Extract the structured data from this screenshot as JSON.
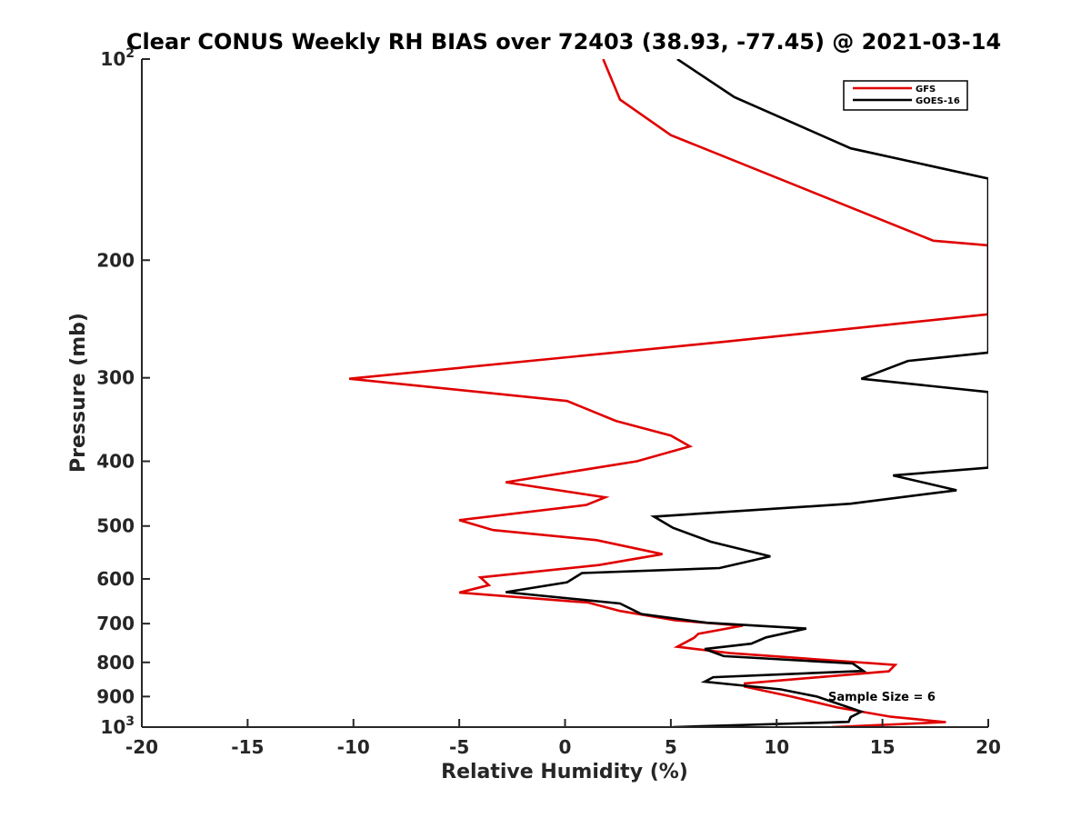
{
  "chart_data": {
    "type": "line",
    "title": "Clear CONUS Weekly RH BIAS over 72403 (38.93, -77.45) @ 2021-03-14",
    "xlabel": "Relative Humidity (%)",
    "ylabel": "Pressure (mb)",
    "xlim": [
      -20,
      20
    ],
    "ylim": [
      100,
      1000
    ],
    "y_scale": "log",
    "y_reversed": true,
    "grid": false,
    "legend_position": "top-right",
    "x_ticks": [
      -20,
      -15,
      -10,
      -5,
      0,
      5,
      10,
      15,
      20
    ],
    "x_tick_labels": [
      "-20",
      "-15",
      "-10",
      "-5",
      "0",
      "5",
      "10",
      "15",
      "20"
    ],
    "y_ticks": [
      100,
      200,
      300,
      400,
      500,
      600,
      700,
      800,
      900,
      1000
    ],
    "y_tick_labels": [
      {
        "base": "10",
        "exp": "2"
      },
      {
        "base": "200",
        "exp": ""
      },
      {
        "base": "300",
        "exp": ""
      },
      {
        "base": "400",
        "exp": ""
      },
      {
        "base": "500",
        "exp": ""
      },
      {
        "base": "600",
        "exp": ""
      },
      {
        "base": "700",
        "exp": ""
      },
      {
        "base": "800",
        "exp": ""
      },
      {
        "base": "900",
        "exp": ""
      },
      {
        "base": "10",
        "exp": "3"
      }
    ],
    "annotation": "Sample Size = 6",
    "series": [
      {
        "name": "GFS",
        "color": "#e00000",
        "points": [
          [
            1.8,
            100
          ],
          [
            2.6,
            115
          ],
          [
            5.0,
            130
          ],
          [
            17.4,
            187
          ],
          [
            20.0,
            190
          ],
          [
            20.0,
            241
          ],
          [
            7.5,
            265
          ],
          [
            -10.2,
            301
          ],
          [
            0.1,
            325
          ],
          [
            2.4,
            348
          ],
          [
            5.0,
            366
          ],
          [
            5.9,
            380
          ],
          [
            3.4,
            400
          ],
          [
            -2.8,
            430
          ],
          [
            1.9,
            453
          ],
          [
            1.0,
            465
          ],
          [
            -5.0,
            490
          ],
          [
            -3.4,
            507
          ],
          [
            1.5,
            525
          ],
          [
            4.6,
            551
          ],
          [
            1.6,
            572
          ],
          [
            -4.0,
            597
          ],
          [
            -3.6,
            613
          ],
          [
            -5.0,
            629
          ],
          [
            1.1,
            651
          ],
          [
            2.6,
            670
          ],
          [
            5.2,
            692
          ],
          [
            8.4,
            705
          ],
          [
            6.3,
            725
          ],
          [
            6.1,
            735
          ],
          [
            5.3,
            758
          ],
          [
            7.8,
            775
          ],
          [
            15.6,
            807
          ],
          [
            15.3,
            825
          ],
          [
            8.5,
            860
          ],
          [
            8.5,
            870
          ],
          [
            10.7,
            900
          ],
          [
            12.9,
            935
          ],
          [
            15.4,
            965
          ],
          [
            18.0,
            983
          ],
          [
            12.6,
            1000
          ]
        ]
      },
      {
        "name": "GOES-16",
        "color": "#000000",
        "points": [
          [
            5.3,
            100
          ],
          [
            8.0,
            114
          ],
          [
            13.5,
            136
          ],
          [
            20.0,
            151
          ],
          [
            20.0,
            275
          ],
          [
            16.2,
            283
          ],
          [
            14.0,
            301
          ],
          [
            20.0,
            315
          ],
          [
            20.0,
            409
          ],
          [
            15.5,
            420
          ],
          [
            18.5,
            442
          ],
          [
            13.5,
            463
          ],
          [
            4.2,
            484
          ],
          [
            5.1,
            503
          ],
          [
            6.9,
            528
          ],
          [
            9.7,
            555
          ],
          [
            7.3,
            578
          ],
          [
            0.8,
            588
          ],
          [
            0.1,
            607
          ],
          [
            -2.8,
            628
          ],
          [
            2.6,
            653
          ],
          [
            3.6,
            677
          ],
          [
            6.7,
            698
          ],
          [
            11.4,
            712
          ],
          [
            9.5,
            734
          ],
          [
            8.8,
            750
          ],
          [
            6.6,
            764
          ],
          [
            7.5,
            783
          ],
          [
            13.6,
            803
          ],
          [
            14.1,
            824
          ],
          [
            7.0,
            842
          ],
          [
            6.6,
            855
          ],
          [
            10.2,
            878
          ],
          [
            11.9,
            900
          ],
          [
            14.0,
            948
          ],
          [
            13.5,
            966
          ],
          [
            13.4,
            982
          ],
          [
            5.1,
            1000
          ]
        ]
      }
    ]
  }
}
